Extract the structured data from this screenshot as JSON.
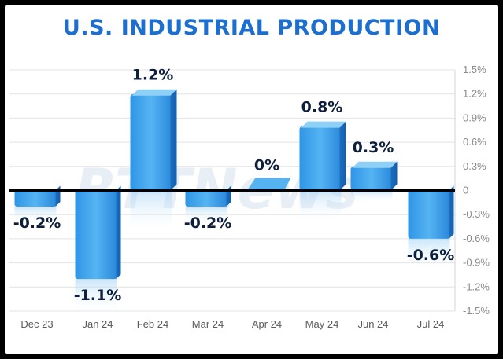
{
  "chart_data": {
    "type": "bar",
    "title": "U.S. INDUSTRIAL PRODUCTION",
    "categories": [
      "Dec 23",
      "Jan 24",
      "Feb 24",
      "Mar 24",
      "Apr 24",
      "May 24",
      "Jun 24",
      "Jul 24"
    ],
    "values": [
      -0.2,
      -1.1,
      1.2,
      -0.2,
      0,
      0.8,
      0.3,
      -0.6
    ],
    "data_labels": [
      "-0.2%",
      "-1.1%",
      "1.2%",
      "-0.2%",
      "0%",
      "0.8%",
      "0.3%",
      "-0.6%"
    ],
    "ylim": [
      -1.5,
      1.5
    ],
    "yticks": [
      1.5,
      1.2,
      0.9,
      0.6,
      0.3,
      0,
      -0.3,
      -0.6,
      -0.9,
      -1.2,
      -1.5
    ],
    "ytick_labels": [
      "1.5%",
      "1.2%",
      "0.9%",
      "0.6%",
      "0.3%",
      "0",
      "-0.3%",
      "-0.6%",
      "-0.9%",
      "-1.2%",
      "-1.5%"
    ],
    "y_axis_side": "right",
    "grid": true,
    "legend": "none",
    "bar_color": "#2a8fe0"
  },
  "watermark": "RTTNews"
}
